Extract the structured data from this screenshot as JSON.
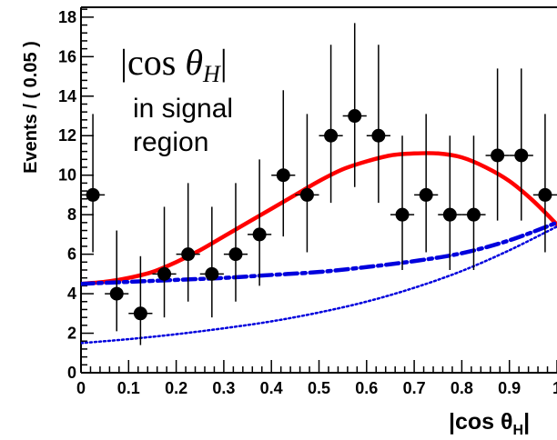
{
  "chart_data": {
    "type": "scatter",
    "xlabel": "|cos θ",
    "xlabel_sub": "H",
    "xlabel_end": "|",
    "ylabel": "Events / ( 0.05 )",
    "xlim": [
      0,
      1
    ],
    "ylim": [
      0,
      18.5
    ],
    "x_ticks": [
      0,
      0.1,
      0.2,
      0.3,
      0.4,
      0.5,
      0.6,
      0.7,
      0.8,
      0.9,
      1
    ],
    "x_tick_labels": [
      "0",
      "0.1",
      "0.2",
      "0.3",
      "0.4",
      "0.5",
      "0.6",
      "0.7",
      "0.8",
      "0.9",
      "1"
    ],
    "y_ticks": [
      0,
      2,
      4,
      6,
      8,
      10,
      12,
      14,
      16,
      18
    ],
    "y_tick_labels": [
      "0",
      "2",
      "4",
      "6",
      "8",
      "10",
      "12",
      "14",
      "16",
      "18"
    ],
    "annotation": {
      "formula": "|cos θH|",
      "line1": "in signal",
      "line2": "region"
    },
    "data_points": {
      "x": [
        0.025,
        0.075,
        0.125,
        0.175,
        0.225,
        0.275,
        0.325,
        0.375,
        0.425,
        0.475,
        0.525,
        0.575,
        0.625,
        0.675,
        0.725,
        0.775,
        0.825,
        0.875,
        0.925,
        0.975
      ],
      "y": [
        9,
        4,
        3,
        5,
        6,
        5,
        6,
        7,
        10,
        9,
        12,
        13,
        12,
        8,
        9,
        8,
        8,
        11,
        11,
        9
      ],
      "err_low": [
        2.9,
        1.9,
        1.6,
        2.2,
        2.4,
        2.2,
        2.4,
        2.6,
        3.1,
        2.9,
        3.4,
        3.6,
        3.4,
        2.8,
        2.9,
        2.8,
        2.8,
        3.3,
        3.3,
        2.9
      ],
      "err_high": [
        4.1,
        3.2,
        2.9,
        3.4,
        3.6,
        3.4,
        3.6,
        3.8,
        4.3,
        4.1,
        4.6,
        4.7,
        4.6,
        4.0,
        4.1,
        4.0,
        4.0,
        4.4,
        4.4,
        4.1
      ],
      "xerr": 0.025,
      "color": "#000000"
    },
    "curves": [
      {
        "style": "solid",
        "color": "#ff0000",
        "x": [
          0,
          0.05,
          0.1,
          0.15,
          0.2,
          0.25,
          0.3,
          0.35,
          0.4,
          0.45,
          0.5,
          0.55,
          0.6,
          0.65,
          0.7,
          0.75,
          0.8,
          0.85,
          0.9,
          0.95,
          1
        ],
        "y": [
          4.5,
          4.6,
          4.8,
          5.1,
          5.6,
          6.2,
          6.9,
          7.6,
          8.3,
          9.0,
          9.7,
          10.3,
          10.7,
          11.0,
          11.1,
          11.1,
          10.9,
          10.4,
          9.7,
          8.7,
          7.5
        ]
      },
      {
        "style": "dashdot",
        "color": "#0000dd",
        "x": [
          0,
          0.1,
          0.2,
          0.3,
          0.4,
          0.5,
          0.6,
          0.7,
          0.8,
          0.9,
          1
        ],
        "y": [
          4.5,
          4.6,
          4.7,
          4.8,
          4.95,
          5.1,
          5.35,
          5.65,
          6.05,
          6.7,
          7.6
        ]
      },
      {
        "style": "dotted",
        "color": "#0000dd",
        "x": [
          0,
          0.1,
          0.2,
          0.3,
          0.4,
          0.5,
          0.6,
          0.7,
          0.8,
          0.9,
          1
        ],
        "y": [
          1.5,
          1.7,
          1.95,
          2.25,
          2.6,
          3.05,
          3.6,
          4.3,
          5.15,
          6.2,
          7.4
        ]
      }
    ]
  }
}
